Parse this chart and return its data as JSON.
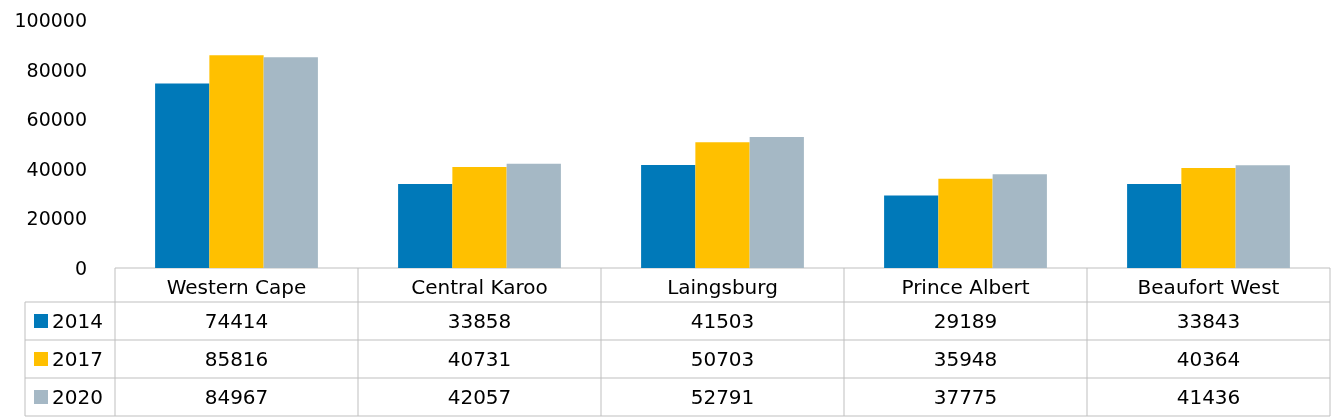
{
  "chart_data": {
    "type": "bar",
    "categories": [
      "Western Cape",
      "Central Karoo",
      "Laingsburg",
      "Prince Albert",
      "Beaufort West"
    ],
    "series": [
      {
        "name": "2014",
        "color": "#0079b9",
        "values": [
          74414,
          33858,
          41503,
          29189,
          33843
        ]
      },
      {
        "name": "2017",
        "color": "#ffc000",
        "values": [
          85816,
          40731,
          50703,
          35948,
          40364
        ]
      },
      {
        "name": "2020",
        "color": "#a5b8c5",
        "values": [
          84967,
          42057,
          52791,
          37775,
          41436
        ]
      }
    ],
    "ylim": [
      0,
      100000
    ],
    "yticks": [
      0,
      20000,
      40000,
      60000,
      80000,
      100000
    ],
    "grid": false,
    "legend": "bottom",
    "data_labels": true
  }
}
